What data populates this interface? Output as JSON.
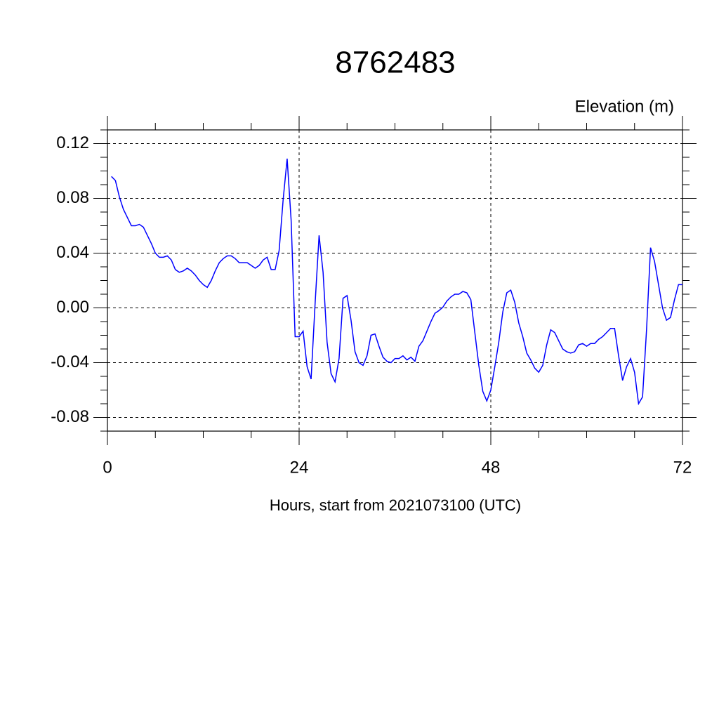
{
  "chart_data": {
    "type": "line",
    "title": "8762483",
    "ylabel": "Elevation (m)",
    "xlabel": "Hours, start from 2021073100 (UTC)",
    "x": [
      0.5,
      1,
      1.5,
      2,
      2.5,
      3,
      3.5,
      4,
      4.5,
      5,
      5.5,
      6,
      6.5,
      7,
      7.5,
      8,
      8.5,
      9,
      9.5,
      10,
      10.5,
      11,
      11.5,
      12,
      12.5,
      13,
      13.5,
      14,
      14.5,
      15,
      15.5,
      16,
      16.5,
      17,
      17.5,
      18,
      18.5,
      19,
      19.5,
      20,
      20.5,
      21,
      21.5,
      22,
      22.5,
      23,
      23.5,
      24,
      24.5,
      25,
      25.5,
      26,
      26.5,
      27,
      27.5,
      28,
      28.5,
      29,
      29.5,
      30,
      30.5,
      31,
      31.5,
      32,
      32.5,
      33,
      33.5,
      34,
      34.5,
      35,
      35.5,
      36,
      36.5,
      37,
      37.5,
      38,
      38.5,
      39,
      39.5,
      40,
      40.5,
      41,
      41.5,
      42,
      42.5,
      43,
      43.5,
      44,
      44.5,
      45,
      45.5,
      46,
      46.5,
      47,
      47.5,
      48,
      48.5,
      49,
      49.5,
      50,
      50.5,
      51,
      51.5,
      52,
      52.5,
      53,
      53.5,
      54,
      54.5,
      55,
      55.5,
      56,
      56.5,
      57,
      57.5,
      58,
      58.5,
      59,
      59.5,
      60,
      60.5,
      61,
      61.5,
      62,
      62.5,
      63,
      63.5,
      64,
      64.5,
      65,
      65.5,
      66,
      66.5,
      67,
      67.5,
      68,
      68.5,
      69,
      69.5,
      70,
      70.5,
      71,
      71.5,
      72
    ],
    "series": [
      {
        "color": "#0000ff",
        "values": [
          0.096,
          0.093,
          0.081,
          0.072,
          0.066,
          0.06,
          0.06,
          0.061,
          0.059,
          0.053,
          0.047,
          0.04,
          0.037,
          0.037,
          0.038,
          0.035,
          0.028,
          0.026,
          0.027,
          0.029,
          0.027,
          0.024,
          0.02,
          0.017,
          0.015,
          0.02,
          0.027,
          0.033,
          0.036,
          0.038,
          0.038,
          0.036,
          0.033,
          0.033,
          0.033,
          0.031,
          0.029,
          0.031,
          0.035,
          0.037,
          0.028,
          0.028,
          0.042,
          0.079,
          0.109,
          0.064,
          -0.021,
          -0.021,
          -0.017,
          -0.043,
          -0.052,
          0.003,
          0.053,
          0.026,
          -0.025,
          -0.048,
          -0.054,
          -0.037,
          0.007,
          0.009,
          -0.009,
          -0.032,
          -0.04,
          -0.042,
          -0.035,
          -0.02,
          -0.019,
          -0.028,
          -0.036,
          -0.039,
          -0.04,
          -0.037,
          -0.037,
          -0.035,
          -0.038,
          -0.036,
          -0.039,
          -0.028,
          -0.024,
          -0.017,
          -0.01,
          -0.004,
          -0.002,
          0.0005,
          0.005,
          0.008,
          0.01,
          0.01,
          0.012,
          0.011,
          0.006,
          -0.018,
          -0.042,
          -0.061,
          -0.068,
          -0.06,
          -0.043,
          -0.025,
          -0.003,
          0.011,
          0.013,
          0.004,
          -0.011,
          -0.021,
          -0.033,
          -0.038,
          -0.044,
          -0.047,
          -0.042,
          -0.027,
          -0.016,
          -0.018,
          -0.024,
          -0.03,
          -0.032,
          -0.033,
          -0.032,
          -0.027,
          -0.026,
          -0.028,
          -0.026,
          -0.026,
          -0.023,
          -0.021,
          -0.018,
          -0.015,
          -0.015,
          -0.035,
          -0.053,
          -0.043,
          -0.037,
          -0.047,
          -0.07,
          -0.065,
          -0.016,
          0.044,
          0.034,
          0.017,
          0.0,
          -0.009,
          -0.007,
          0.006,
          0.017,
          0.017
        ]
      }
    ],
    "xlim": [
      0,
      72
    ],
    "xticks": [
      0,
      24,
      48,
      72
    ],
    "xminorticks": [
      6,
      12,
      18,
      30,
      36,
      42,
      54,
      60,
      66
    ],
    "ylim": [
      -0.09,
      0.13
    ],
    "yticks": [
      0.12,
      0.08,
      0.04,
      {
        "value": 0,
        "label": "0.00"
      },
      -0.04,
      -0.08
    ],
    "yminorticks": [
      0.13,
      0.11,
      0.1,
      0.09,
      0.07,
      0.06,
      0.05,
      0.03,
      0.02,
      0.01,
      -0.01,
      -0.02,
      -0.03,
      -0.05,
      -0.06,
      -0.07,
      -0.09
    ],
    "grid": true
  }
}
